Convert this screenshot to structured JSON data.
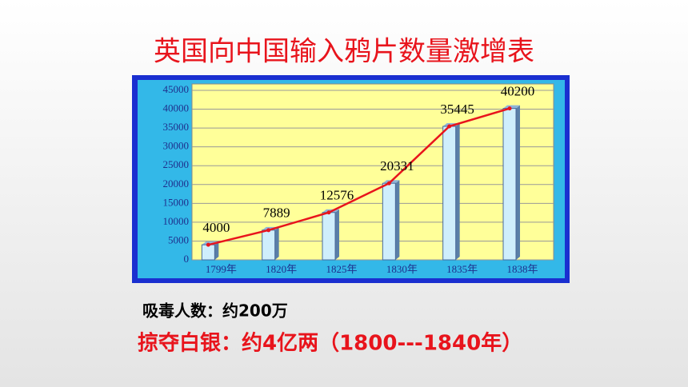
{
  "chart_data": {
    "type": "bar",
    "title": "英国向中国输入鸦片数量激增表",
    "categories": [
      "1799年",
      "1820年",
      "1825年",
      "1830年",
      "1835年",
      "1838年"
    ],
    "values": [
      4000,
      7889,
      12576,
      20331,
      35445,
      40200
    ],
    "color": "#cfeefc",
    "line_color": "#e8141c",
    "ylim": [
      0,
      45000
    ],
    "yticks": [
      0,
      5000,
      10000,
      15000,
      20000,
      25000,
      30000,
      35000,
      40000,
      45000
    ],
    "grid": true
  },
  "notes": [
    "吸毒人数：约200万",
    "掠夺白银：约4亿两（1800---1840年）"
  ]
}
